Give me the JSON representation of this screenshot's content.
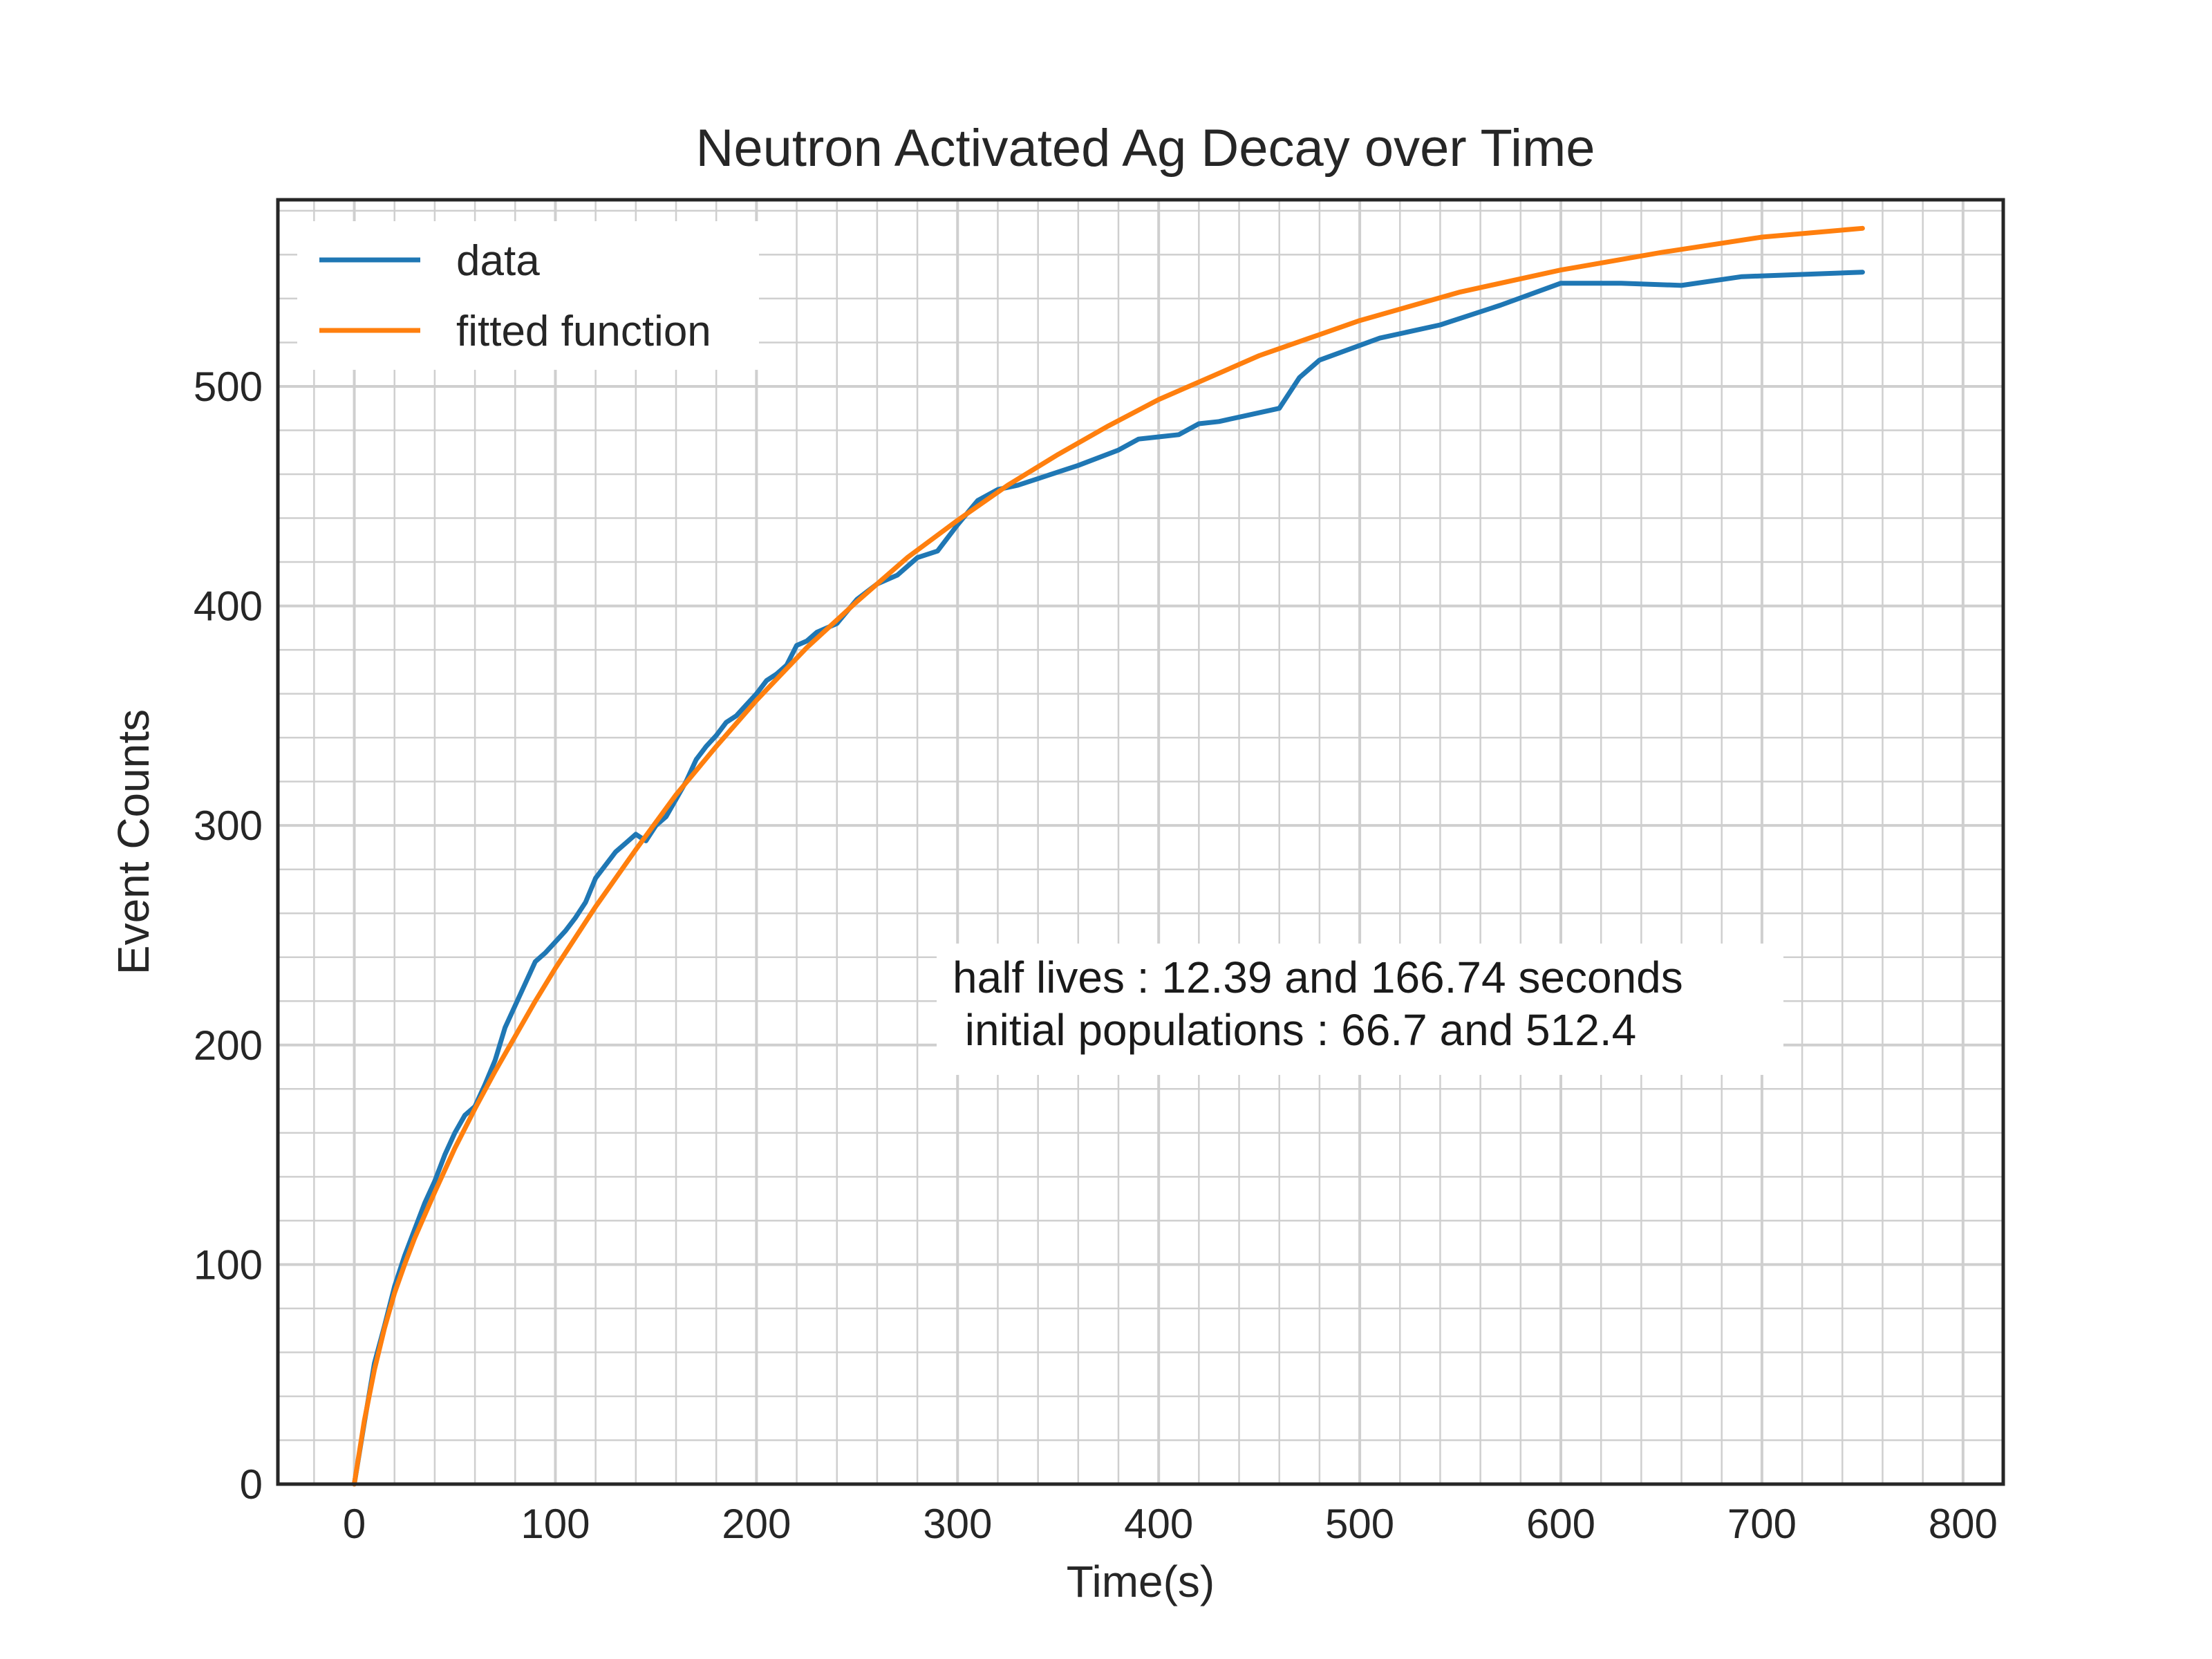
{
  "chart_data": {
    "type": "line",
    "title": "Neutron Activated Ag Decay over Time",
    "xlabel": "Time(s)",
    "ylabel": "Event Counts",
    "xlim": [
      -38,
      820
    ],
    "ylim": [
      0,
      585
    ],
    "xticks": [
      0,
      100,
      200,
      300,
      400,
      500,
      600,
      700,
      800
    ],
    "yticks": [
      0,
      100,
      200,
      300,
      400,
      500
    ],
    "minor_grid": true,
    "legend_position": "top-left",
    "annotation": [
      "half lives : 12.39 and 166.74 seconds",
      " initial populations : 66.7 and 512.4"
    ],
    "colors": {
      "data": "#1f77b4",
      "fit": "#ff7f0e",
      "grid": "#cfcfcf",
      "frame": "#262626"
    },
    "series": [
      {
        "name": "data",
        "x": [
          0,
          5,
          10,
          15,
          20,
          25,
          30,
          35,
          40,
          45,
          50,
          55,
          60,
          65,
          70,
          75,
          80,
          85,
          90,
          95,
          100,
          105,
          110,
          115,
          120,
          125,
          130,
          135,
          140,
          145,
          150,
          155,
          160,
          165,
          170,
          175,
          180,
          185,
          190,
          195,
          200,
          205,
          210,
          215,
          220,
          225,
          230,
          240,
          250,
          260,
          270,
          280,
          290,
          300,
          310,
          320,
          330,
          340,
          350,
          360,
          380,
          390,
          400,
          410,
          420,
          430,
          440,
          450,
          460,
          470,
          480,
          510,
          540,
          570,
          600,
          630,
          660,
          690,
          720,
          750
        ],
        "y": [
          0,
          28,
          55,
          72,
          90,
          104,
          116,
          128,
          138,
          150,
          160,
          168,
          172,
          182,
          193,
          208,
          218,
          228,
          238,
          242,
          247,
          252,
          258,
          265,
          276,
          282,
          288,
          292,
          296,
          293,
          300,
          304,
          312,
          320,
          330,
          336,
          341,
          347,
          350,
          355,
          360,
          366,
          369,
          373,
          382,
          384,
          388,
          392,
          403,
          410,
          414,
          422,
          425,
          437,
          448,
          453,
          455,
          458,
          461,
          464,
          471,
          476,
          477,
          478,
          483,
          484,
          486,
          488,
          490,
          504,
          512,
          522,
          528,
          537,
          547,
          547,
          546,
          550,
          551,
          552
        ]
      },
      {
        "name": "fitted function",
        "x": [
          0,
          5,
          10,
          15,
          20,
          25,
          30,
          40,
          50,
          60,
          70,
          80,
          90,
          100,
          120,
          140,
          160,
          180,
          200,
          225,
          250,
          275,
          300,
          325,
          350,
          375,
          400,
          425,
          450,
          475,
          500,
          550,
          600,
          650,
          700,
          750
        ],
        "y": [
          0,
          29,
          52,
          71,
          87,
          100,
          112,
          133,
          153,
          171,
          188,
          204,
          220,
          235,
          263,
          289,
          314,
          336,
          357,
          381,
          402,
          422,
          439,
          455,
          469,
          482,
          494,
          504,
          514,
          522,
          530,
          543,
          553,
          561,
          568,
          572
        ]
      }
    ]
  }
}
